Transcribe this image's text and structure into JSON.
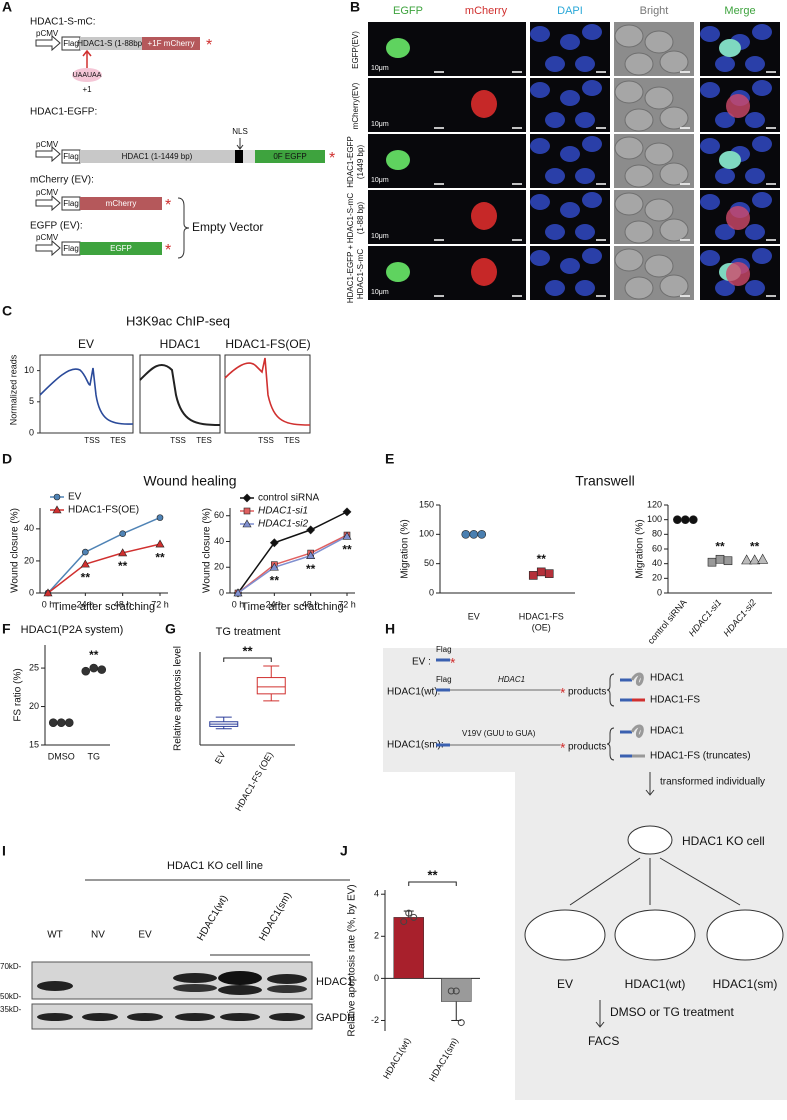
{
  "panel_letters": [
    "A",
    "B",
    "C",
    "D",
    "E",
    "F",
    "G",
    "H",
    "I",
    "J"
  ],
  "asterisk": "*",
  "construct_map": {
    "c1_title": "HDAC1-S-mC:",
    "promoter": "pCMV",
    "flag": "Flag",
    "c1_orf": "HDAC1-S (1-88bp)",
    "c1_tag": "+1F mCherry",
    "stop": "UAAUAA",
    "frame": "+1",
    "c2_title": "HDAC1-EGFP:",
    "nls": "NLS",
    "c2_orf": "HDAC1 (1-1449 bp)",
    "c2_tag": "0F EGFP",
    "c3_title": "mCherry (EV):",
    "c3_tag": "mCherry",
    "c4_title": "EGFP (EV):",
    "c4_tag": "EGFP",
    "ev_label": "Empty Vector"
  },
  "microscopy": {
    "channels": [
      "EGFP",
      "mCherry",
      "DAPI",
      "Bright",
      "Merge"
    ],
    "rows": [
      [
        "EGFP(EV)"
      ],
      [
        "mCherry(EV)"
      ],
      [
        "HDAC1-EGFP",
        "(1449 bp)"
      ],
      [
        "HDAC1-S-mC",
        "(1-88 bp)"
      ],
      [
        "HDAC1-EGFP +",
        "HDAC1-S-mC"
      ]
    ],
    "scale_bar": "10μm"
  },
  "chip_seq": {
    "title": "H3K9ac ChIP-seq",
    "ylabel": "Normalized reads",
    "ylim": [
      0,
      12.5
    ],
    "yticks": [
      0,
      5,
      10
    ],
    "panels": [
      "EV",
      "HDAC1",
      "HDAC1-FS(OE)"
    ],
    "tss": "TSS",
    "tes": "TES"
  },
  "chart_data": [
    {
      "type": "line",
      "title": "Wound healing",
      "y_label": "Wound closure (%)",
      "x_label": "Time after scratching",
      "categories": [
        "0 h",
        "24 h",
        "48 h",
        "72 h"
      ],
      "ylim": [
        0,
        53
      ],
      "yticks": [
        0,
        20,
        40
      ],
      "legend": true,
      "series": [
        {
          "name": "EV",
          "color": "#4f83b5",
          "marker": "circle",
          "values": [
            0,
            25.5,
            37,
            47
          ]
        },
        {
          "name": "HDAC1-FS(OE)",
          "color": "#d0302f",
          "marker": "triangle",
          "values": [
            0,
            18,
            25,
            30.5
          ]
        }
      ],
      "significance": [
        null,
        "**",
        "**",
        "**"
      ]
    },
    {
      "type": "line",
      "y_label": "Wound closure (%)",
      "x_label": "Time after scratching",
      "categories": [
        "0 h",
        "24 h",
        "48 h",
        "72 h"
      ],
      "ylim": [
        0,
        66
      ],
      "yticks": [
        0,
        20,
        40,
        60
      ],
      "legend": true,
      "series": [
        {
          "name": "control siRNA",
          "color": "#111111",
          "marker": "diamond",
          "values": [
            0,
            39,
            49,
            63
          ]
        },
        {
          "name": "HDAC1-si1",
          "color": "#e06060",
          "marker": "square",
          "values": [
            0,
            22,
            31,
            45
          ]
        },
        {
          "name": "HDAC1-si2",
          "color": "#7f8fcf",
          "marker": "triangle",
          "values": [
            0,
            20,
            29,
            44
          ]
        }
      ],
      "significance": [
        null,
        "**",
        "**",
        "**"
      ]
    },
    {
      "type": "dot",
      "title": "Transwell",
      "y_label": "Migration (%)",
      "categories": [
        [
          "EV"
        ],
        [
          "HDAC1-FS",
          "(OE)"
        ]
      ],
      "ylim": [
        0,
        150
      ],
      "yticks": [
        0,
        50,
        100,
        150
      ],
      "colors": [
        "#4a7fb0",
        "#b5303a"
      ],
      "markers": [
        "circle",
        "square"
      ],
      "values": [
        [
          100,
          100,
          100
        ],
        [
          30,
          36,
          33
        ]
      ],
      "significance": [
        null,
        "**"
      ]
    },
    {
      "type": "dot",
      "y_label": "Migration (%)",
      "categories": [
        "control siRNA",
        "HDAC1-si1",
        "HDAC1-si2"
      ],
      "label_rotation": -50,
      "ylim": [
        0,
        120
      ],
      "yticks": [
        0,
        20,
        40,
        60,
        80,
        100,
        120
      ],
      "colors": [
        "#111111",
        "#999999",
        "#bbbbbb"
      ],
      "markers": [
        "circle",
        "square",
        "triangle"
      ],
      "values": [
        [
          100,
          100,
          100
        ],
        [
          42,
          46,
          44
        ],
        [
          45,
          45,
          46
        ]
      ],
      "significance": [
        null,
        "**",
        "**"
      ]
    },
    {
      "type": "dot",
      "title": "HDAC1(P2A system)",
      "y_label": "FS ratio (%)",
      "categories": [
        "DMSO",
        "TG"
      ],
      "ylim": [
        15,
        28
      ],
      "yticks": [
        15,
        20,
        25
      ],
      "colors": [
        "#333333",
        "#333333"
      ],
      "markers": [
        "circle",
        "circle"
      ],
      "values": [
        [
          17.9,
          17.9,
          17.9
        ],
        [
          24.6,
          25,
          24.8
        ]
      ],
      "significance": [
        null,
        "**"
      ]
    },
    {
      "type": "box",
      "title": "TG treatment",
      "y_label": "Relative apoptosis level",
      "categories": [
        "EV",
        "HDAC1-FS (OE)"
      ],
      "label_rotation": -60,
      "ylim": [
        1.5,
        3.5
      ],
      "colors": [
        "#2c3e9a",
        "#d0302f"
      ],
      "values": [
        {
          "min": 1.85,
          "q1": 1.9,
          "median": 1.95,
          "q3": 2.0,
          "max": 2.1
        },
        {
          "min": 2.45,
          "q1": 2.6,
          "median": 2.75,
          "q3": 2.95,
          "max": 3.2
        }
      ],
      "bracket": "**"
    },
    {
      "type": "bar",
      "y_label": "Relative  apoptosis rate (%, by EV)",
      "categories": [
        "HDAC1(wt)",
        "HDAC1(sm)"
      ],
      "label_rotation": -60,
      "ylim": [
        -2.5,
        4.2
      ],
      "yticks": [
        -2,
        0,
        2,
        4
      ],
      "colors": [
        "#a8202c",
        "#9a9a9a"
      ],
      "values": [
        2.9,
        -1.1
      ],
      "errors": [
        0.3,
        0.9
      ],
      "points": [
        [
          2.7,
          3.1,
          2.9
        ],
        [
          -0.6,
          -0.6,
          -2.1
        ]
      ],
      "bracket": "**"
    }
  ],
  "workflow": {
    "ev": "EV :",
    "flag": "Flag",
    "wt": "HDAC1(wt):",
    "gene": "HDAC1",
    "sm": "HDAC1(sm):",
    "mutation": "V19V (GUU to GUA)",
    "products": "products",
    "p_full": "HDAC1",
    "p_fs": "HDAC1-FS",
    "p_trunc": "HDAC1-FS (truncates)",
    "step1": "transformed individually",
    "ko": "HDAC1 KO cell",
    "dishes": [
      "EV",
      "HDAC1(wt)",
      "HDAC1(sm)"
    ],
    "step2": "DMSO or TG treatment",
    "facs": "FACS"
  },
  "western": {
    "header": "HDAC1 KO cell line",
    "lanes": [
      "WT",
      "NV",
      "EV",
      "HDAC1(wt)",
      "HDAC1(sm)"
    ],
    "markers": [
      "70kD-",
      "50kD-",
      "35kD-"
    ],
    "proteins": [
      "HDAC1",
      "GAPDH"
    ]
  }
}
